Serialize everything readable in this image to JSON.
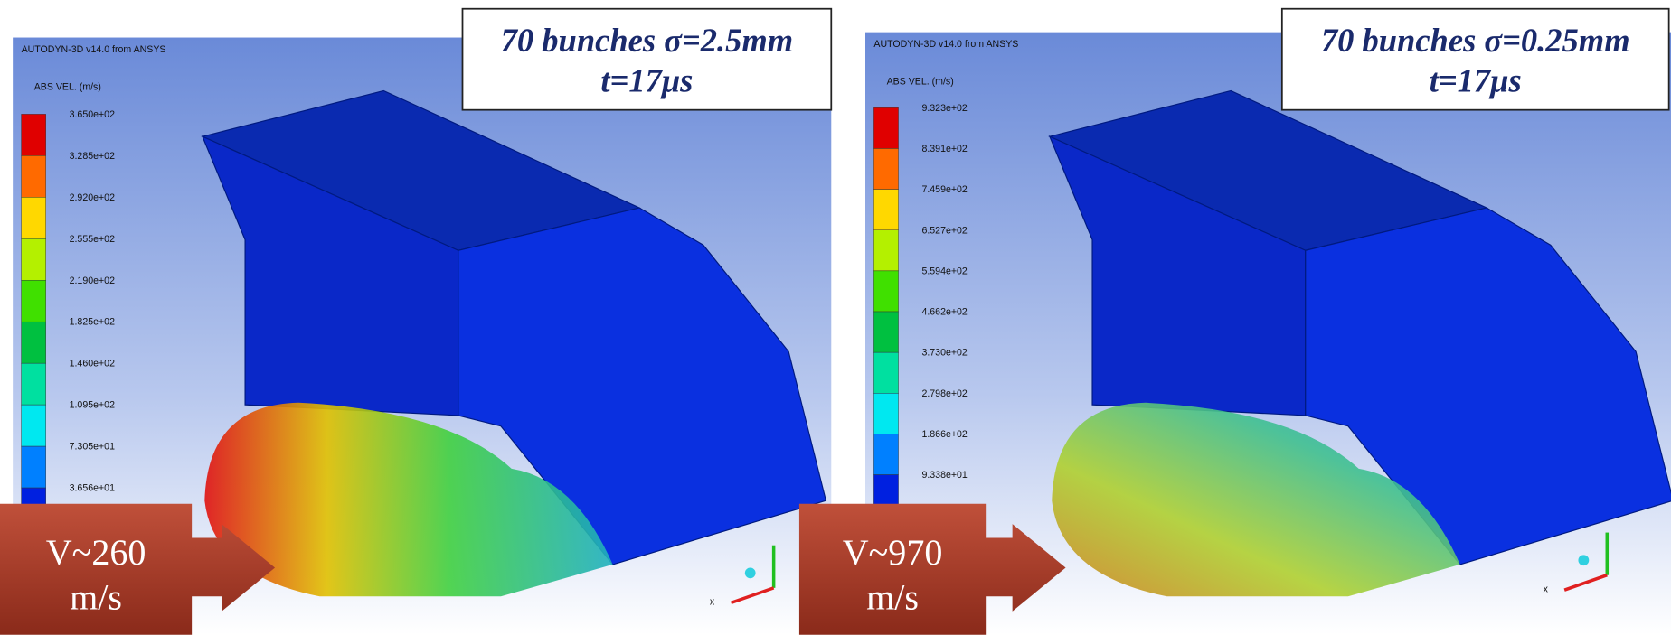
{
  "panels": [
    {
      "software": "AUTODYN-3D v14.0 from ANSYS",
      "quantity": "ABS VEL. (m/s)",
      "legend_labels": [
        "3.650e+02",
        "3.285e+02",
        "2.920e+02",
        "2.555e+02",
        "2.190e+02",
        "1.825e+02",
        "1.460e+02",
        "1.095e+02",
        "7.305e+01",
        "3.656e+01"
      ],
      "title": [
        "70 bunches  σ=2.5mm",
        "t=17μs"
      ],
      "callout": [
        "V~260",
        "m/s"
      ],
      "axis_label": "x"
    },
    {
      "software": "AUTODYN-3D v14.0 from ANSYS",
      "quantity": "ABS VEL. (m/s)",
      "legend_labels": [
        "9.323e+02",
        "8.391e+02",
        "7.459e+02",
        "6.527e+02",
        "5.594e+02",
        "4.662e+02",
        "3.730e+02",
        "2.798e+02",
        "1.866e+02",
        "9.338e+01"
      ],
      "title": [
        "70 bunches  σ=0.25mm",
        "t=17μs"
      ],
      "callout": [
        "V~970",
        "m/s"
      ],
      "axis_label": "x"
    }
  ]
}
